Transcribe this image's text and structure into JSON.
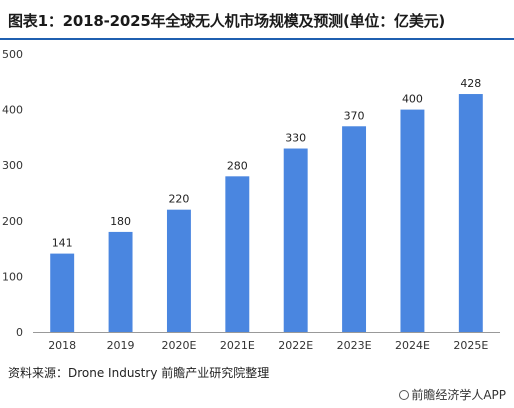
{
  "header": {
    "title": "图表1：2018-2025年全球无人机市场规模及预测(单位：亿美元)"
  },
  "footer": {
    "source": "资料来源：Drone Industry 前瞻产业研究院整理",
    "brand": "前瞻经济学人APP"
  },
  "chart_data": {
    "type": "bar",
    "categories": [
      "2018",
      "2019",
      "2020E",
      "2021E",
      "2022E",
      "2023E",
      "2024E",
      "2025E"
    ],
    "values": [
      141,
      180,
      220,
      280,
      330,
      370,
      400,
      428
    ],
    "title": "图表1：2018-2025年全球无人机市场规模及预测(单位：亿美元)",
    "xlabel": "",
    "ylabel": "",
    "ylim": [
      0,
      500
    ],
    "yticks": [
      0,
      100,
      200,
      300,
      400,
      500
    ],
    "bar_color": "#4a86e0",
    "grid": false,
    "legend": "none"
  }
}
